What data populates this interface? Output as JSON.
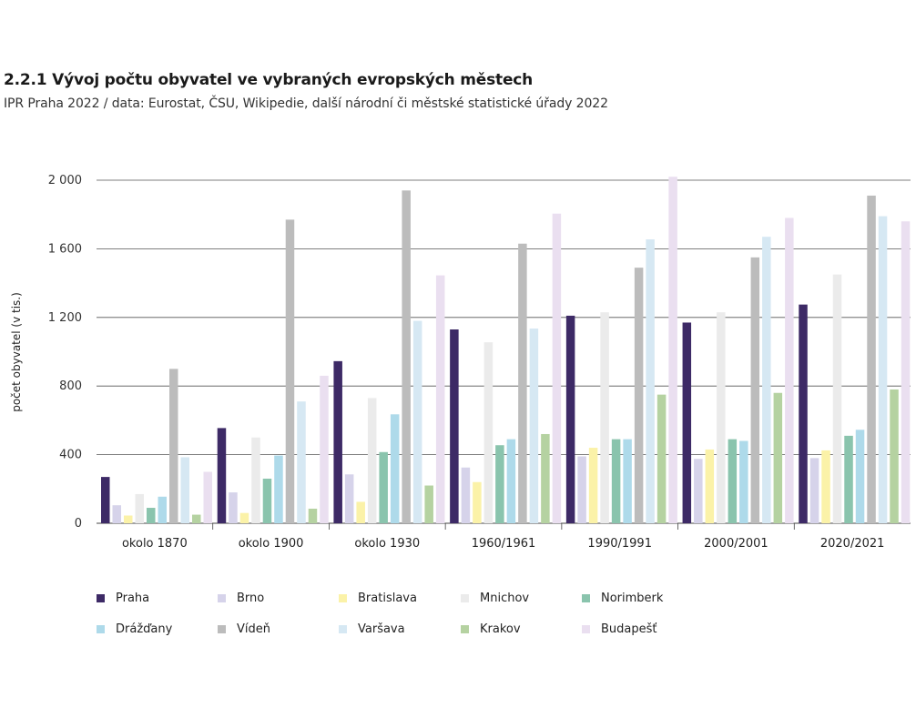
{
  "header": {
    "title": "2.2.1 Vývoj počtu obyvatel ve vybraných evropských městech",
    "subtitle": "IPR Praha 2022 / data: Eurostat, ČSU, Wikipedie, další národní či městské statistické úřady 2022"
  },
  "chart_data": {
    "type": "bar",
    "title": "2.2.1 Vývoj počtu obyvatel ve vybraných evropských městech",
    "xlabel": "",
    "ylabel": "počet obyvatel (v tis.)",
    "ylim": [
      0,
      2000
    ],
    "yticks": [
      0,
      400,
      800,
      1200,
      1600,
      2000
    ],
    "ytick_labels": [
      "0",
      "400",
      "800",
      "1 200",
      "1 600",
      "2 000"
    ],
    "grid": true,
    "legend_position": "bottom",
    "categories": [
      "okolo 1870",
      "okolo 1900",
      "okolo 1930",
      "1960/1961",
      "1990/1991",
      "2000/2001",
      "2020/2021"
    ],
    "series": [
      {
        "name": "Praha",
        "color": "#3d2a66",
        "values": [
          270,
          555,
          945,
          1130,
          1210,
          1170,
          1275
        ]
      },
      {
        "name": "Brno",
        "color": "#d6d3ea",
        "values": [
          105,
          180,
          285,
          325,
          390,
          375,
          380
        ]
      },
      {
        "name": "Bratislava",
        "color": "#fbf2a8",
        "values": [
          45,
          60,
          125,
          240,
          440,
          430,
          425
        ]
      },
      {
        "name": "Mnichov",
        "color": "#ebebeb",
        "values": [
          170,
          500,
          730,
          1055,
          1230,
          1230,
          1450
        ]
      },
      {
        "name": "Norimberk",
        "color": "#8ac4ad",
        "values": [
          90,
          260,
          415,
          455,
          490,
          490,
          510
        ]
      },
      {
        "name": "Drážďany",
        "color": "#aedaea",
        "values": [
          155,
          395,
          635,
          490,
          490,
          480,
          545
        ]
      },
      {
        "name": "Vídeň",
        "color": "#bcbcbc",
        "values": [
          900,
          1770,
          1940,
          1630,
          1490,
          1550,
          1910
        ]
      },
      {
        "name": "Varšava",
        "color": "#d6e8f3",
        "values": [
          385,
          710,
          1180,
          1135,
          1655,
          1670,
          1790
        ]
      },
      {
        "name": "Krakov",
        "color": "#b5d2a1",
        "values": [
          50,
          85,
          220,
          520,
          750,
          760,
          780
        ]
      },
      {
        "name": "Budapešť",
        "color": "#eadff0",
        "values": [
          300,
          860,
          1445,
          1805,
          2020,
          1780,
          1760
        ]
      }
    ]
  }
}
